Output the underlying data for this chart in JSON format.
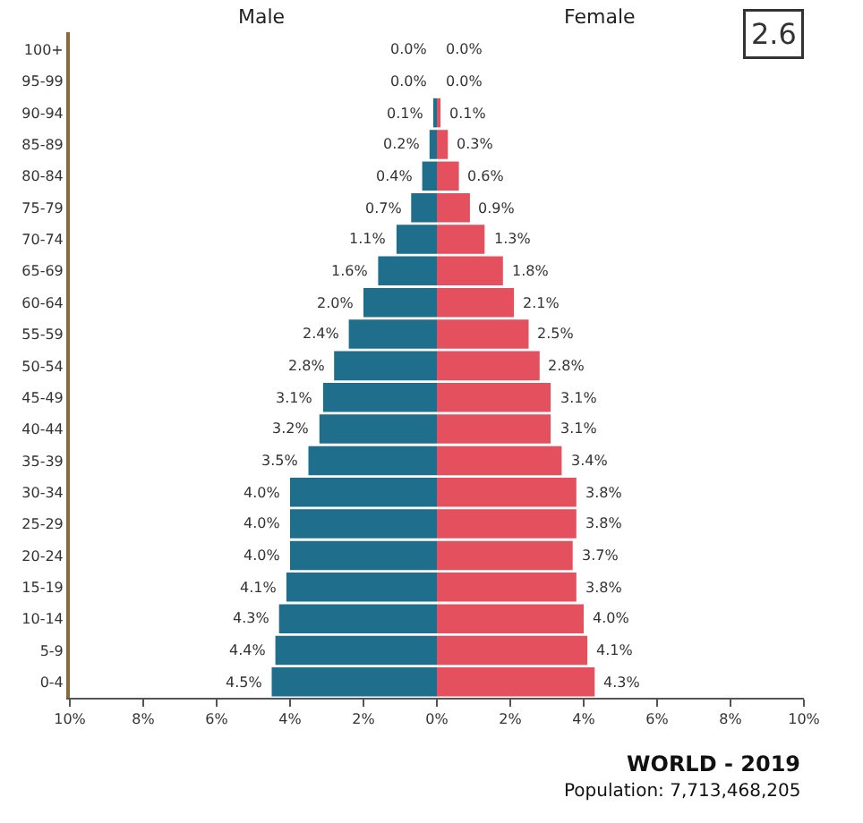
{
  "chart_data": [
    {
      "type": "bar",
      "orientation": "horizontal",
      "title": "Male",
      "annotations": [
        "2.6"
      ],
      "categories": [
        "100+",
        "95-99",
        "90-94",
        "85-89",
        "80-84",
        "75-79",
        "70-74",
        "65-69",
        "60-64",
        "55-59",
        "50-54",
        "45-49",
        "40-44",
        "35-39",
        "30-34",
        "25-29",
        "20-24",
        "15-19",
        "10-14",
        "5-9",
        "0-4"
      ],
      "series": [
        {
          "color": "#1f6e8c",
          "values": [
            0.0,
            0.0,
            0.1,
            0.2,
            0.4,
            0.7,
            1.1,
            1.6,
            2.0,
            2.4,
            2.8,
            3.1,
            3.2,
            3.5,
            4.0,
            4.0,
            4.0,
            4.1,
            4.3,
            4.4,
            4.5
          ],
          "value_labels": [
            "0.0%",
            "0.0%",
            "0.1%",
            "0.2%",
            "0.4%",
            "0.7%",
            "1.1%",
            "1.6%",
            "2.0%",
            "2.4%",
            "2.8%",
            "3.1%",
            "3.2%",
            "3.5%",
            "4.0%",
            "4.0%",
            "4.0%",
            "4.1%",
            "4.3%",
            "4.4%",
            "4.5%"
          ]
        }
      ],
      "xlim": [
        10,
        0
      ],
      "xticks": [
        {
          "value": 10,
          "label": "10%"
        },
        {
          "value": 8,
          "label": "8%"
        },
        {
          "value": 6,
          "label": "6%"
        },
        {
          "value": 4,
          "label": "4%"
        },
        {
          "value": 2,
          "label": "2%"
        },
        {
          "value": 0,
          "label": "0%"
        }
      ]
    },
    {
      "type": "bar",
      "orientation": "horizontal",
      "title": "Female",
      "annotations": [
        "WORLD - 2019",
        "Population: 7,713,468,205"
      ],
      "tick_labels": "x",
      "categories": [
        "100+",
        "95-99",
        "90-94",
        "85-89",
        "80-84",
        "75-79",
        "70-74",
        "65-69",
        "60-64",
        "55-59",
        "50-54",
        "45-49",
        "40-44",
        "35-39",
        "30-34",
        "25-29",
        "20-24",
        "15-19",
        "10-14",
        "5-9",
        "0-4"
      ],
      "series": [
        {
          "color": "#e4505e",
          "values": [
            0.0,
            0.0,
            0.1,
            0.3,
            0.6,
            0.9,
            1.3,
            1.8,
            2.1,
            2.5,
            2.8,
            3.1,
            3.1,
            3.4,
            3.8,
            3.8,
            3.7,
            3.8,
            4.0,
            4.1,
            4.3
          ],
          "value_labels": [
            "0.0%",
            "0.0%",
            "0.1%",
            "0.3%",
            "0.6%",
            "0.9%",
            "1.3%",
            "1.8%",
            "2.1%",
            "2.5%",
            "2.8%",
            "3.1%",
            "3.1%",
            "3.4%",
            "3.8%",
            "3.8%",
            "3.7%",
            "3.8%",
            "4.0%",
            "4.1%",
            "4.3%"
          ]
        }
      ],
      "xlim": [
        0,
        10
      ],
      "xticks": [
        {
          "value": 2,
          "label": "2%"
        },
        {
          "value": 4,
          "label": "4%"
        },
        {
          "value": 6,
          "label": "6%"
        },
        {
          "value": 8,
          "label": "8%"
        },
        {
          "value": 10,
          "label": "10%"
        }
      ]
    }
  ]
}
